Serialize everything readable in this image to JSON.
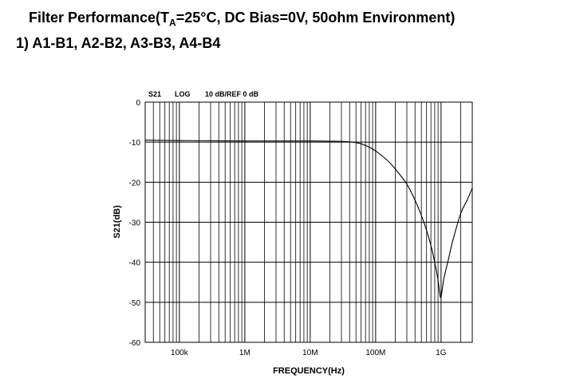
{
  "heading": {
    "prefix": "Filter Performance(T",
    "subscript": "A",
    "suffix": "=25°C, DC Bias=0V, 50ohm Environment)"
  },
  "subheading": "1) A1-B1, A2-B2, A3-B3, A4-B4",
  "chart_header": {
    "param": "S21",
    "scale": "LOG",
    "ref": "10 dB/REF 0 dB"
  },
  "chart_data": {
    "type": "line",
    "xlabel": "FREQUENCY(Hz)",
    "ylabel": "S21(dB)",
    "x_scale": "log",
    "xlim": [
      30000,
      3000000000
    ],
    "ylim": [
      -60,
      0
    ],
    "grid": true,
    "x_ticks": [
      {
        "value": 100000,
        "label": "100k"
      },
      {
        "value": 1000000,
        "label": "1M"
      },
      {
        "value": 10000000,
        "label": "10M"
      },
      {
        "value": 100000000,
        "label": "100M"
      },
      {
        "value": 1000000000,
        "label": "1G"
      }
    ],
    "y_ticks": [
      {
        "value": 0,
        "label": "0"
      },
      {
        "value": -10,
        "label": "-10"
      },
      {
        "value": -20,
        "label": "-20"
      },
      {
        "value": -30,
        "label": "-30"
      },
      {
        "value": -40,
        "label": "-40"
      },
      {
        "value": -50,
        "label": "-50"
      },
      {
        "value": -60,
        "label": "-60"
      }
    ],
    "series": [
      {
        "color": "#000000",
        "x": [
          30000,
          100000,
          1000000,
          10000000,
          30000000,
          50000000,
          70000000,
          100000000,
          150000000,
          200000000,
          300000000,
          400000000,
          500000000,
          600000000,
          700000000,
          800000000,
          900000000,
          950000000,
          1000000000,
          1100000000,
          1300000000,
          1500000000,
          2000000000,
          2500000000,
          3000000000
        ],
        "y": [
          -9.5,
          -9.6,
          -9.7,
          -9.7,
          -9.8,
          -10.1,
          -10.8,
          -12.2,
          -14.5,
          -16.7,
          -20.5,
          -24.5,
          -28.3,
          -32,
          -35.8,
          -40,
          -44.5,
          -47.5,
          -48.7,
          -44.2,
          -39.2,
          -34.8,
          -27.8,
          -24.5,
          -21.5
        ]
      }
    ]
  }
}
